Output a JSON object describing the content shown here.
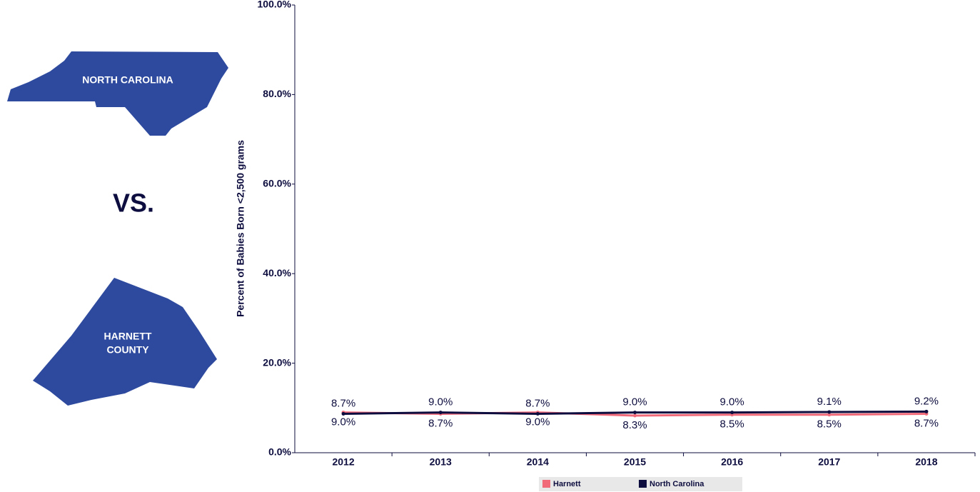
{
  "panel": {
    "state": "NORTH CAROLINA",
    "versus": "VS.",
    "county": [
      "HARNETT",
      "COUNTY"
    ]
  },
  "chart_data": {
    "type": "line",
    "y_label": "Percent of Babies Born <2,500 grams",
    "categories": [
      "2012",
      "2013",
      "2014",
      "2015",
      "2016",
      "2017",
      "2018"
    ],
    "series": [
      {
        "name": "Harnett",
        "color": "#f06a7a",
        "values": [
          9.0,
          8.7,
          9.0,
          8.3,
          8.5,
          8.5,
          8.7
        ],
        "value_labels": [
          "9.0%",
          "8.7%",
          "9.0%",
          "8.3%",
          "8.5%",
          "8.5%",
          "8.7%"
        ]
      },
      {
        "name": "North Carolina",
        "color": "#0d0d3f",
        "values": [
          8.7,
          9.0,
          8.7,
          9.0,
          9.0,
          9.1,
          9.2
        ],
        "value_labels": [
          "8.7%",
          "9.0%",
          "8.7%",
          "9.0%",
          "9.0%",
          "9.1%",
          "9.2%"
        ]
      }
    ],
    "ylim": [
      0,
      100
    ],
    "yticks": [
      {
        "value": 0,
        "label": "0.0%"
      },
      {
        "value": 20,
        "label": "20.0%"
      },
      {
        "value": 40,
        "label": "40.0%"
      },
      {
        "value": 60,
        "label": "60.0%"
      },
      {
        "value": 80,
        "label": "80.0%"
      },
      {
        "value": 100,
        "label": "100.0%"
      }
    ],
    "legend": "bottom"
  }
}
